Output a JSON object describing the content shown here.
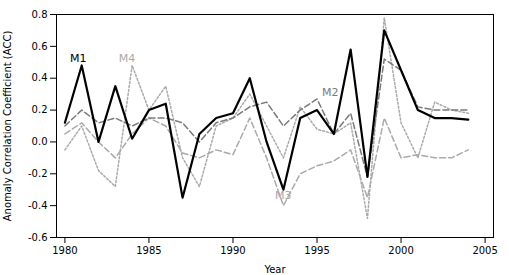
{
  "chart_data": {
    "type": "line",
    "x": [
      1980,
      1981,
      1982,
      1983,
      1984,
      1985,
      1986,
      1987,
      1988,
      1989,
      1990,
      1991,
      1992,
      1993,
      1994,
      1995,
      1996,
      1997,
      1998,
      1999,
      2000,
      2001,
      2002,
      2003,
      2004
    ],
    "series": [
      {
        "name": "M4",
        "color": "#aaaaaa",
        "line_style": "dotted",
        "values": [
          -0.05,
          0.1,
          -0.18,
          -0.28,
          0.48,
          0.2,
          0.35,
          -0.1,
          -0.28,
          0.1,
          0.15,
          0.3,
          0.1,
          -0.1,
          0.22,
          0.08,
          0.05,
          0.12,
          -0.48,
          0.78,
          0.12,
          -0.1,
          0.25,
          0.2,
          0.18
        ]
      },
      {
        "name": "M3",
        "color": "#aaaaaa",
        "line_style": "dashed",
        "values": [
          0.05,
          0.12,
          0.0,
          -0.1,
          0.05,
          0.15,
          0.1,
          -0.07,
          -0.1,
          -0.05,
          -0.08,
          0.15,
          -0.1,
          -0.4,
          -0.2,
          -0.15,
          -0.12,
          -0.05,
          -0.35,
          0.15,
          -0.1,
          -0.08,
          -0.1,
          -0.1,
          -0.05
        ]
      },
      {
        "name": "M2",
        "color": "#7a7a7a",
        "line_style": "dashed",
        "values": [
          0.1,
          0.2,
          0.12,
          0.15,
          0.1,
          0.15,
          0.15,
          0.12,
          0.0,
          0.12,
          0.15,
          0.22,
          0.25,
          0.1,
          0.2,
          0.27,
          0.05,
          0.18,
          -0.22,
          0.52,
          0.45,
          0.22,
          0.2,
          0.2,
          0.2
        ]
      },
      {
        "name": "M1",
        "color": "#000000",
        "line_style": "solid",
        "values": [
          0.12,
          0.48,
          0.0,
          0.35,
          0.02,
          0.2,
          0.24,
          -0.35,
          0.05,
          0.15,
          0.18,
          0.4,
          0.0,
          -0.3,
          0.15,
          0.2,
          0.05,
          0.58,
          -0.22,
          0.7,
          0.45,
          0.2,
          0.15,
          0.15,
          0.14
        ]
      }
    ],
    "annotations": [
      {
        "text": "M1",
        "x": 1980.3,
        "y": 0.5
      },
      {
        "text": "M2",
        "x": 1995.3,
        "y": 0.29
      },
      {
        "text": "M3",
        "x": 1992.5,
        "y": -0.36
      },
      {
        "text": "M4",
        "x": 1983.2,
        "y": 0.5
      }
    ],
    "xlabel": "Year",
    "ylabel": "Anomaly Correlation Coefficient (ACC)",
    "xlim": [
      1979.5,
      2005.5
    ],
    "xticks": [
      1980,
      1985,
      1990,
      1995,
      2000,
      2005
    ],
    "ylim": [
      -0.6,
      0.8
    ],
    "yticks": [
      -0.6,
      -0.4,
      -0.2,
      {
        "value": 0.0,
        "label": "0.0"
      },
      0.2,
      0.4,
      0.6,
      0.8
    ],
    "grid": false
  }
}
